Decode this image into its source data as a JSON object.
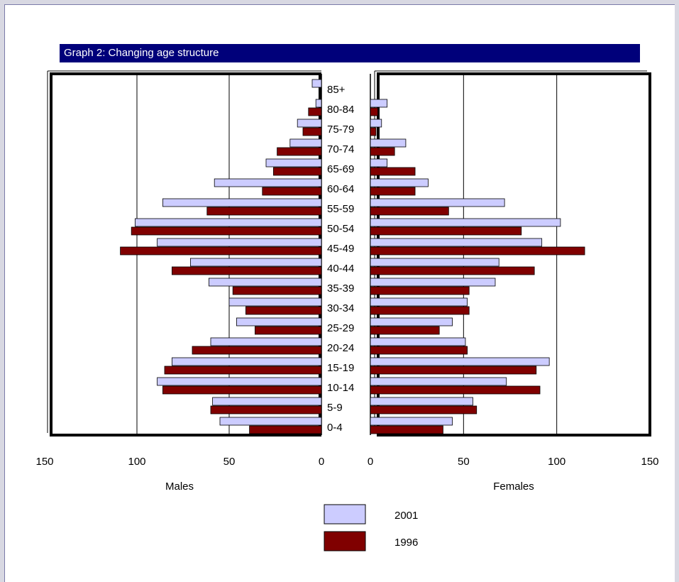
{
  "chart_data": {
    "type": "bar",
    "title": "Graph 2: Changing age structure",
    "categories": [
      "0-4",
      "5-9",
      "10-14",
      "15-19",
      "20-24",
      "25-29",
      "30-34",
      "35-39",
      "40-44",
      "45-49",
      "50-54",
      "55-59",
      "60-64",
      "65-69",
      "70-74",
      "75-79",
      "80-84",
      "85+"
    ],
    "males": {
      "xlabel": "Males",
      "xlim": [
        150,
        0
      ],
      "ticks": [
        150,
        100,
        50,
        0
      ],
      "series": [
        {
          "name": "2001",
          "values": [
            55,
            59,
            89,
            81,
            60,
            46,
            50,
            61,
            71,
            89,
            101,
            86,
            58,
            30,
            17,
            13,
            3,
            5
          ]
        },
        {
          "name": "1996",
          "values": [
            39,
            60,
            86,
            85,
            70,
            36,
            41,
            48,
            81,
            109,
            103,
            62,
            32,
            26,
            24,
            10,
            7,
            0
          ]
        }
      ]
    },
    "females": {
      "xlabel": "Females",
      "xlim": [
        0,
        150
      ],
      "ticks": [
        0,
        50,
        100,
        150
      ],
      "series": [
        {
          "name": "2001",
          "values": [
            44,
            55,
            73,
            96,
            51,
            44,
            52,
            67,
            69,
            92,
            102,
            72,
            31,
            9,
            19,
            6,
            9,
            0
          ]
        },
        {
          "name": "1996",
          "values": [
            39,
            57,
            91,
            89,
            52,
            37,
            53,
            53,
            88,
            115,
            81,
            42,
            24,
            24,
            13,
            3,
            4,
            0
          ]
        }
      ]
    },
    "legend": [
      {
        "label": "2001",
        "color": "#ccccff"
      },
      {
        "label": "1996",
        "color": "#800000"
      }
    ],
    "colors": {
      "s2001": "#ccccff",
      "s1996": "#800000"
    },
    "grid": true,
    "legend_position": "bottom-center"
  }
}
